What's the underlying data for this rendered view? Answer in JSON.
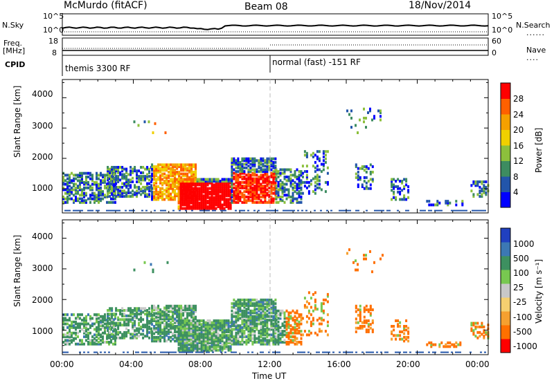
{
  "header": {
    "station": "McMurdo (fitACF)",
    "beam": "Beam 08",
    "date": "18/Nov/2014"
  },
  "summary_panels": {
    "left_labels": {
      "nsky": "N.Sky",
      "freq": "Freq.",
      "freq_unit": "[MHz]",
      "cpid": "CPID"
    },
    "right_labels": {
      "nsearch": "N.Search",
      "nave": "Nave"
    },
    "nsky_ticks": [
      "10^5",
      "10^0"
    ],
    "nsearch_ticks": [
      "10^5",
      "10^0"
    ],
    "freq_ticks": [
      "18",
      "8"
    ],
    "nave_ticks": [
      "60",
      "0"
    ],
    "cpid_segments": [
      {
        "label": "themis 3300 RF",
        "start_hour": 0
      },
      {
        "label": "normal (fast) -151 RF",
        "start_hour": 12
      }
    ]
  },
  "chart_data": [
    {
      "type": "heatmap",
      "name": "power",
      "ylabel": "Slant Range [km]",
      "xlabel": "",
      "ylim": [
        200,
        4600
      ],
      "yticks": [
        "1000",
        "2000",
        "3000",
        "4000"
      ],
      "x_range_hours": [
        0,
        24
      ],
      "colorbar": {
        "label": "Power [dB]",
        "ticks": [
          "4",
          "8",
          "12",
          "16",
          "20",
          "24",
          "28"
        ],
        "colors": [
          "#0000ff",
          "#2255aa",
          "#3d8c60",
          "#8cc03c",
          "#f0d000",
          "#f5a000",
          "#ff6000",
          "#ff0000"
        ]
      }
    },
    {
      "type": "heatmap",
      "name": "velocity",
      "ylabel": "Slant Range [km]",
      "xlabel": "Time UT",
      "ylim": [
        200,
        4600
      ],
      "yticks": [
        "1000",
        "2000",
        "3000",
        "4000"
      ],
      "x_range_hours": [
        0,
        24
      ],
      "xticks": [
        "00:00",
        "04:00",
        "08:00",
        "12:00",
        "16:00",
        "20:00",
        "00:00"
      ],
      "colorbar": {
        "label": "Velocity [m s⁻¹]",
        "ticks": [
          "1000",
          "500",
          "100",
          "25",
          "-25",
          "-100",
          "-500",
          "-1000"
        ],
        "colors": [
          "#2040c0",
          "#3c78b4",
          "#3d9060",
          "#78c850",
          "#c8c8c8",
          "#f5d070",
          "#f5a030",
          "#ff7000",
          "#ff0000"
        ]
      }
    }
  ]
}
